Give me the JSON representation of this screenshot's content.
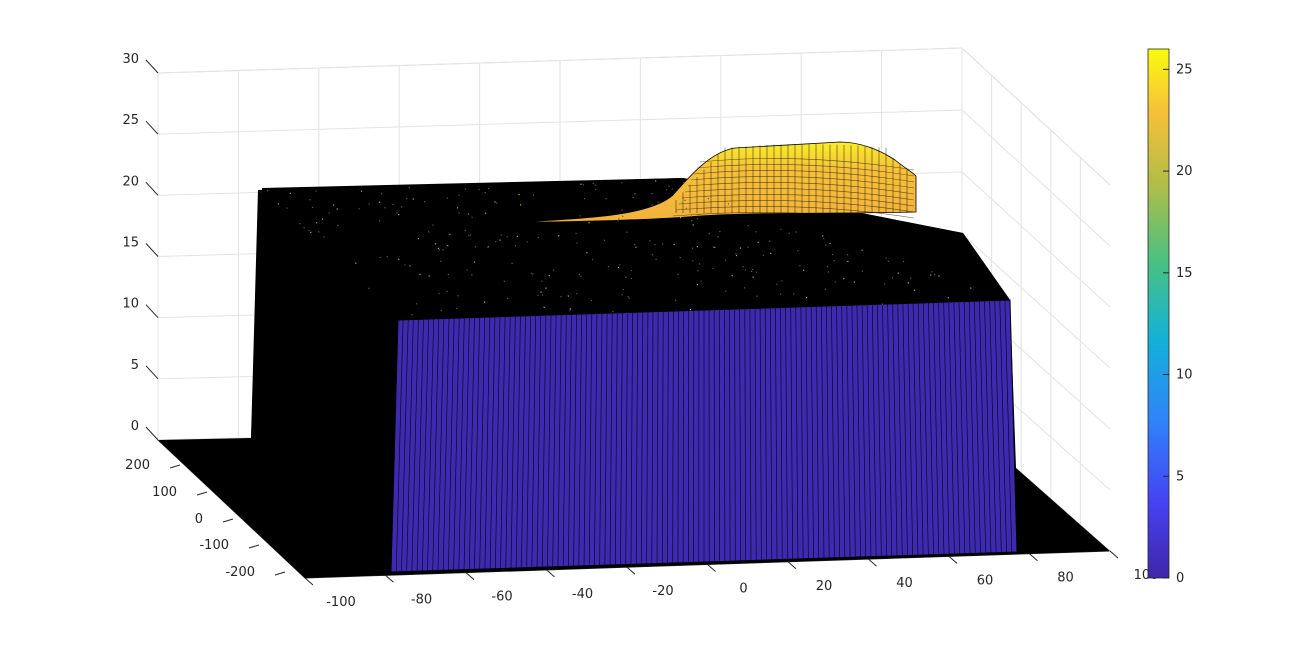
{
  "chart_data": {
    "type": "surface3d",
    "title": "",
    "xlabel": "",
    "ylabel": "",
    "zlabel": "",
    "grid": true,
    "colormap": "parula",
    "xlim": [
      -100,
      100
    ],
    "ylim": [
      -250,
      250
    ],
    "zlim": [
      0,
      30
    ],
    "x_ticks": [
      "-100",
      "-80",
      "-60",
      "-40",
      "-20",
      "0",
      "20",
      "40",
      "60",
      "80",
      "100"
    ],
    "y_ticks": [
      "-200",
      "-100",
      "0",
      "100",
      "200"
    ],
    "z_ticks": [
      "0",
      "5",
      "10",
      "15",
      "20",
      "25",
      "30"
    ],
    "colorbar": {
      "location": "right",
      "limits": [
        0,
        26
      ],
      "ticks": [
        "0",
        "5",
        "10",
        "15",
        "20",
        "25"
      ],
      "colors": [
        "#3e26a8",
        "#4641f2",
        "#2f84f9",
        "#12b1d7",
        "#4ac180",
        "#b5bd46",
        "#f6c03a",
        "#f9fb0e"
      ]
    },
    "surface": {
      "slab_x": [
        -70,
        70
      ],
      "slab_y": [
        -120,
        200
      ],
      "slab_top_z": 19,
      "base_z": 0,
      "bump": {
        "x_range": [
          0,
          40
        ],
        "peak_z": 26,
        "face_color": "#f2bd3a"
      },
      "front_face_color": "#3e2ab0",
      "edge_color": "#000000",
      "floor_color": "#000000"
    }
  }
}
